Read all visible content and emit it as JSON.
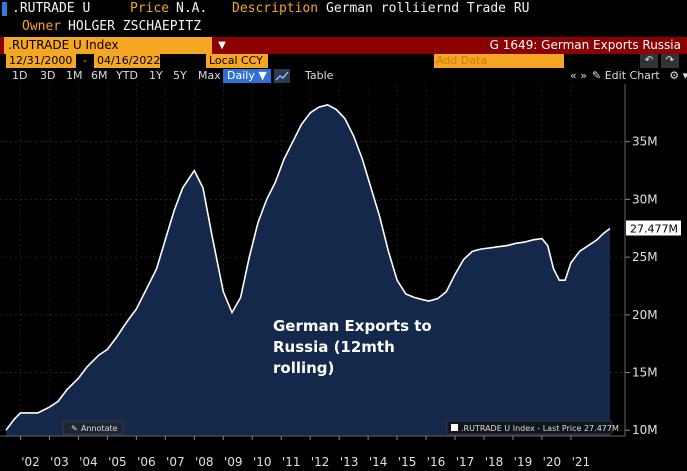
{
  "header": {
    "ticker": ".RUTRADE U",
    "price_label": "Price",
    "price_value": "N.A.",
    "desc_label": "Description",
    "desc_value": "German rolliiernd Trade RU",
    "owner_label": "Owner",
    "owner_value": "HOLGER ZSCHAEPITZ"
  },
  "security_bar": {
    "security": ".RUTRADE U Index",
    "menu_arrow": "▼",
    "title": "G 1649: German Exports Russia"
  },
  "date_range": {
    "start": "12/31/2000",
    "separator": "-",
    "end": "04/16/2022",
    "currency": "Local CCY",
    "add_data_placeholder": "Add Data",
    "undo": "↶",
    "redo": "↷"
  },
  "toolbar": {
    "ranges": [
      "1D",
      "3D",
      "1M",
      "6M",
      "YTD",
      "1Y",
      "5Y",
      "Max"
    ],
    "frequency": "Daily ▼",
    "table_label": "Table",
    "nav_left": "«",
    "nav_right": "»",
    "edit_chart": "✎ Edit Chart",
    "gear": "⚙",
    "more": "▾"
  },
  "chart_data": {
    "type": "area",
    "title": "",
    "annotation": [
      "German Exports to",
      "Russia (12mth",
      "rolling)"
    ],
    "annotate_label": "Annotate",
    "legend": ".RUTRADE U Index - Last Price 27.477M",
    "last_value_label": "27.477M",
    "last_value": 27.477,
    "ylim": [
      9.5,
      40
    ],
    "y_ticks": [
      10,
      15,
      20,
      25,
      30,
      35
    ],
    "y_tick_labels": [
      "10M",
      "15M",
      "20M",
      "25M",
      "30M",
      "35M"
    ],
    "xlim": [
      2001.5,
      2022.35
    ],
    "x_ticks": [
      2002,
      2003,
      2004,
      2005,
      2006,
      2007,
      2008,
      2009,
      2010,
      2011,
      2012,
      2013,
      2014,
      2015,
      2016,
      2017,
      2018,
      2019,
      2020,
      2021
    ],
    "x_tick_labels": [
      "'02",
      "'03",
      "'04",
      "'05",
      "'06",
      "'07",
      "'08",
      "'09",
      "'10",
      "'11",
      "'12",
      "'13",
      "'14",
      "'15",
      "'16",
      "'17",
      "'18",
      "'19",
      "'20",
      "'21"
    ],
    "series": [
      {
        "name": ".RUTRADE U Index",
        "x": [
          2001.5,
          2001.8,
          2002.0,
          2002.3,
          2002.6,
          2003.0,
          2003.3,
          2003.6,
          2004.0,
          2004.3,
          2004.7,
          2005.0,
          2005.3,
          2005.7,
          2006.0,
          2006.3,
          2006.7,
          2007.0,
          2007.3,
          2007.6,
          2008.0,
          2008.3,
          2008.6,
          2009.0,
          2009.3,
          2009.6,
          2009.9,
          2010.2,
          2010.5,
          2010.8,
          2011.1,
          2011.4,
          2011.7,
          2012.0,
          2012.3,
          2012.6,
          2012.9,
          2013.2,
          2013.5,
          2013.8,
          2014.1,
          2014.4,
          2014.7,
          2015.0,
          2015.3,
          2015.6,
          2015.9,
          2016.1,
          2016.4,
          2016.7,
          2017.0,
          2017.3,
          2017.6,
          2017.9,
          2018.2,
          2018.5,
          2018.8,
          2019.1,
          2019.4,
          2019.7,
          2020.0,
          2020.2,
          2020.4,
          2020.6,
          2020.8,
          2021.0,
          2021.3,
          2021.6,
          2021.9,
          2022.1,
          2022.35
        ],
        "values": [
          10.0,
          11.0,
          11.5,
          11.5,
          11.5,
          12.0,
          12.5,
          13.5,
          14.5,
          15.5,
          16.5,
          17.0,
          18.0,
          19.5,
          20.5,
          22.0,
          24.0,
          26.5,
          29.0,
          31.0,
          32.5,
          31.0,
          27.0,
          22.0,
          20.2,
          21.5,
          25.0,
          28.0,
          30.0,
          31.5,
          33.5,
          35.0,
          36.5,
          37.5,
          38.0,
          38.2,
          37.8,
          37.0,
          35.5,
          33.5,
          31.0,
          28.5,
          25.5,
          23.0,
          21.8,
          21.5,
          21.3,
          21.2,
          21.4,
          22.0,
          23.5,
          24.8,
          25.5,
          25.7,
          25.8,
          25.9,
          26.0,
          26.2,
          26.3,
          26.5,
          26.6,
          26.0,
          24.0,
          23.0,
          23.0,
          24.5,
          25.5,
          26.0,
          26.5,
          27.0,
          27.477
        ]
      }
    ]
  },
  "colors": {
    "accent": "#f5a623",
    "area_fill": "#14284b",
    "line": "#ffffff",
    "title_bar": "#8b0000",
    "active": "#2f6fd6"
  }
}
